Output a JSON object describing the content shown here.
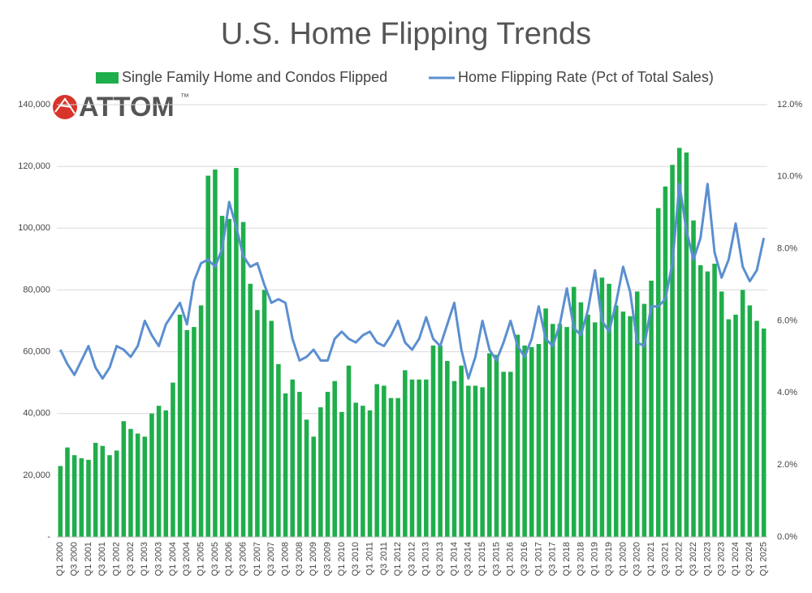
{
  "chart_data": {
    "type": "bar_line",
    "title": "U.S. Home Flipping Trends",
    "logo": {
      "text": "ATTOM",
      "mark": "™"
    },
    "categories": [
      "Q1 2000",
      null,
      "Q3 2000",
      null,
      "Q1 2001",
      null,
      "Q3 2001",
      null,
      "Q1 2002",
      null,
      "Q3 2002",
      null,
      "Q1 2003",
      null,
      "Q3 2003",
      null,
      "Q1 2004",
      null,
      "Q3 2004",
      null,
      "Q1 2005",
      null,
      "Q3 2005",
      null,
      "Q1 2006",
      null,
      "Q3 2006",
      null,
      "Q1 2007",
      null,
      "Q3 2007",
      null,
      "Q1 2008",
      null,
      "Q3 2008",
      null,
      "Q1 2009",
      null,
      "Q3 2009",
      null,
      "Q1 2010",
      null,
      "Q3 2010",
      null,
      "Q1 2011",
      null,
      "Q3 2011",
      null,
      "Q1 2012",
      null,
      "Q3 2012",
      null,
      "Q1 2013",
      null,
      "Q3 2013",
      null,
      "Q1 2014",
      null,
      "Q3 2014",
      null,
      "Q1 2015",
      null,
      "Q3 2015",
      null,
      "Q1 2016",
      null,
      "Q3 2016",
      null,
      "Q1 2017",
      null,
      "Q3 2017",
      null,
      "Q1 2018",
      null,
      "Q3 2018",
      null,
      "Q1 2019",
      null,
      "Q3 2019",
      null,
      "Q1 2020",
      null,
      "Q3 2020",
      null,
      "Q1 2021",
      null,
      "Q3 2021",
      null,
      "Q1 2022",
      null,
      "Q3 2022",
      null,
      "Q1 2023",
      null,
      "Q3 2023",
      null,
      "Q1 2024",
      null,
      "Q3 2024",
      null,
      "Q1 2025"
    ],
    "series": [
      {
        "name": "Single Family Home and Condos Flipped",
        "type": "bar",
        "color": "#1fae4b",
        "values": [
          23000,
          29000,
          26500,
          25500,
          25000,
          30500,
          29500,
          26500,
          28000,
          37500,
          35000,
          33500,
          32500,
          40000,
          42500,
          41000,
          50000,
          72000,
          67000,
          68000,
          75000,
          117000,
          119000,
          104000,
          103000,
          119500,
          102000,
          82000,
          73500,
          80000,
          70000,
          56000,
          46500,
          51000,
          47000,
          38000,
          32500,
          42000,
          47000,
          50500,
          40500,
          55500,
          43500,
          42500,
          41000,
          49500,
          49000,
          45000,
          45000,
          54000,
          51000,
          51000,
          51000,
          62000,
          62000,
          57000,
          50500,
          55500,
          49000,
          49000,
          48500,
          59500,
          59000,
          53500,
          53500,
          65500,
          62000,
          61500,
          62500,
          74000,
          69000,
          69000,
          68000,
          81000,
          76000,
          72000,
          69500,
          84000,
          82000,
          75000,
          73000,
          71500,
          79500,
          75500,
          83000,
          106500,
          113500,
          120500,
          126000,
          124500,
          102500,
          88000,
          86000,
          88500,
          79500,
          70500,
          72000,
          80000,
          75000,
          70000,
          67500
        ]
      },
      {
        "name": "Home Flipping Rate (Pct of Total Sales)",
        "type": "line",
        "axis": "y2",
        "color": "#5b8fd0",
        "values": [
          5.2,
          4.8,
          4.5,
          4.9,
          5.3,
          4.7,
          4.4,
          4.7,
          5.3,
          5.2,
          5.0,
          5.3,
          6.0,
          5.6,
          5.3,
          5.9,
          6.2,
          6.5,
          5.9,
          7.1,
          7.6,
          7.7,
          7.5,
          8.0,
          9.3,
          8.6,
          7.8,
          7.5,
          7.6,
          7.0,
          6.5,
          6.6,
          6.5,
          5.5,
          4.9,
          5.0,
          5.2,
          4.9,
          4.9,
          5.5,
          5.7,
          5.5,
          5.4,
          5.6,
          5.7,
          5.4,
          5.3,
          5.6,
          6.0,
          5.4,
          5.2,
          5.5,
          6.1,
          5.5,
          5.3,
          5.9,
          6.5,
          5.2,
          4.4,
          5.0,
          6.0,
          5.2,
          4.9,
          5.4,
          6.0,
          5.3,
          5.0,
          5.5,
          6.4,
          5.5,
          5.3,
          5.9,
          6.9,
          5.8,
          5.6,
          6.3,
          7.4,
          6.0,
          5.7,
          6.5,
          7.5,
          6.8,
          5.4,
          5.3,
          6.4,
          6.4,
          6.6,
          7.6,
          9.8,
          8.5,
          7.7,
          8.3,
          9.8,
          7.9,
          7.2,
          7.7,
          8.7,
          7.5,
          7.1,
          7.4,
          8.3
        ]
      }
    ],
    "ylim": [
      0,
      140000
    ],
    "yticks": [
      {
        "value": 0,
        "label": "-"
      },
      {
        "value": 20000,
        "label": "20,000"
      },
      {
        "value": 40000,
        "label": "40,000"
      },
      {
        "value": 60000,
        "label": "60,000"
      },
      {
        "value": 80000,
        "label": "80,000"
      },
      {
        "value": 100000,
        "label": "100,000"
      },
      {
        "value": 120000,
        "label": "120,000"
      },
      {
        "value": 140000,
        "label": "140,000"
      }
    ],
    "y2lim": [
      0,
      12
    ],
    "y2ticks": [
      {
        "value": 0,
        "label": "0.0%"
      },
      {
        "value": 2,
        "label": "2.0%"
      },
      {
        "value": 4,
        "label": "4.0%"
      },
      {
        "value": 6,
        "label": "6.0%"
      },
      {
        "value": 8,
        "label": "8.0%"
      },
      {
        "value": 10,
        "label": "10.0%"
      },
      {
        "value": 12,
        "label": "12.0%"
      }
    ],
    "grid": true,
    "legend": "top"
  }
}
